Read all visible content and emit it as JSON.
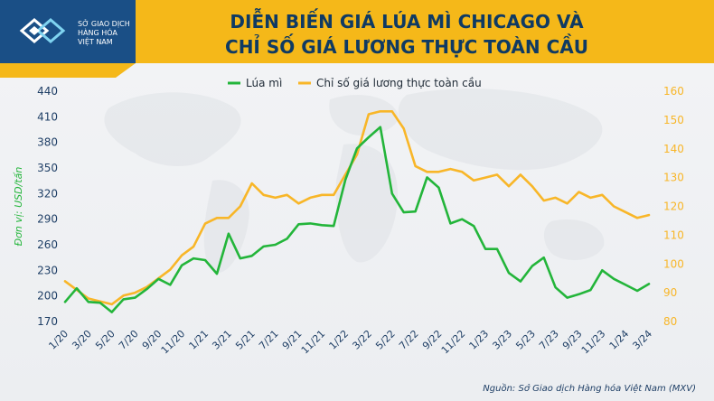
{
  "header": {
    "logo_lines": [
      "SỞ GIAO DỊCH",
      "HÀNG HÓA",
      "VIỆT NAM"
    ],
    "title_lines": [
      "DIỄN BIẾN GIÁ LÚA MÌ CHICAGO VÀ",
      "CHỈ SỐ GIÁ LƯƠNG THỰC TOÀN CẦU"
    ]
  },
  "source": "Nguồn: Sở Giao dịch Hàng hóa Việt Nam (MXV)",
  "colors": {
    "banner": "#f5b819",
    "title": "#0f3a63",
    "wheat": "#23b53a",
    "food_index": "#f8b628",
    "axis_text": "#1f3f66"
  },
  "chart_data": {
    "type": "line",
    "x": [
      "1/20",
      "2/20",
      "3/20",
      "4/20",
      "5/20",
      "6/20",
      "7/20",
      "8/20",
      "9/20",
      "10/20",
      "11/20",
      "12/20",
      "1/21",
      "2/21",
      "3/21",
      "4/21",
      "5/21",
      "6/21",
      "7/21",
      "8/21",
      "9/21",
      "10/21",
      "11/21",
      "12/21",
      "1/22",
      "2/22",
      "3/22",
      "4/22",
      "5/22",
      "6/22",
      "7/22",
      "8/22",
      "9/22",
      "10/22",
      "11/22",
      "12/22",
      "1/23",
      "2/23",
      "3/23",
      "4/23",
      "5/23",
      "6/23",
      "7/23",
      "8/23",
      "9/23",
      "10/23",
      "11/23",
      "12/23",
      "1/24",
      "2/24",
      "3/24"
    ],
    "x_tick_labels": [
      "1/20",
      "3/20",
      "5/20",
      "7/20",
      "9/20",
      "11/20",
      "1/21",
      "3/21",
      "5/21",
      "7/21",
      "9/21",
      "11/21",
      "1/22",
      "3/22",
      "5/22",
      "7/22",
      "9/22",
      "11/22",
      "1/23",
      "3/23",
      "5/23",
      "7/23",
      "9/23",
      "11/23",
      "1/24",
      "3/24"
    ],
    "series": [
      {
        "name": "Lúa mì",
        "axis": "left",
        "color": "#23b53a",
        "values": [
          193,
          209,
          193,
          192,
          181,
          196,
          198,
          208,
          220,
          213,
          236,
          244,
          242,
          226,
          273,
          244,
          247,
          258,
          260,
          267,
          284,
          285,
          283,
          282,
          336,
          373,
          386,
          398,
          320,
          298,
          299,
          339,
          327,
          285,
          290,
          282,
          255,
          255,
          227,
          217,
          235,
          245,
          210,
          198,
          202,
          207,
          230,
          220,
          213,
          206,
          214
        ]
      },
      {
        "name": "Chỉ số giá lương thực toàn cầu",
        "axis": "right",
        "color": "#f8b628",
        "values": [
          94,
          91,
          88,
          87,
          86,
          89,
          90,
          92,
          95,
          98,
          103,
          106,
          114,
          116,
          116,
          120,
          128,
          124,
          123,
          124,
          121,
          123,
          124,
          124,
          131,
          138,
          152,
          153,
          153,
          147,
          134,
          132,
          132,
          133,
          132,
          129,
          130,
          131,
          127,
          131,
          127,
          122,
          123,
          121,
          125,
          123,
          124,
          120,
          118,
          116,
          117
        ]
      }
    ],
    "ylabel": "Đơn vị: USD/tấn",
    "ylim": [
      170,
      440
    ],
    "yticks": [
      170,
      200,
      230,
      260,
      290,
      320,
      350,
      380,
      410,
      440
    ],
    "y2lim": [
      80,
      160
    ],
    "y2ticks": [
      80,
      90,
      100,
      110,
      120,
      130,
      140,
      150,
      160
    ],
    "grid": false,
    "legend": "top-center"
  }
}
